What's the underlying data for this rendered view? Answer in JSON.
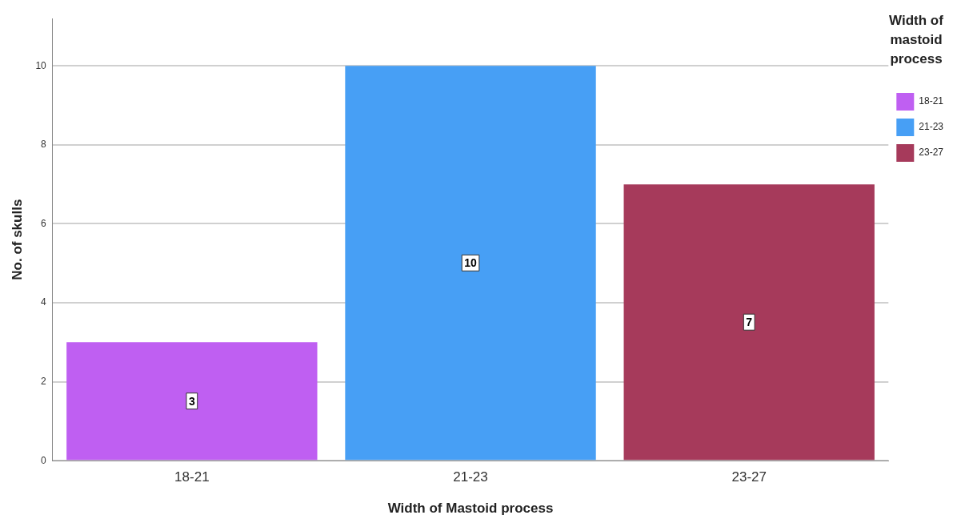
{
  "chart_data": {
    "type": "bar",
    "xlabel": "Width of Mastoid process",
    "ylabel": "No. of skulls",
    "legend_title": "Width of mastoid process",
    "categories": [
      "18-21",
      "21-23",
      "23-27"
    ],
    "series": [
      {
        "name": "18-21",
        "color": "#bf5ff2",
        "values": [
          3,
          null,
          null
        ]
      },
      {
        "name": "21-23",
        "color": "#479ff5",
        "values": [
          null,
          10,
          null
        ]
      },
      {
        "name": "23-27",
        "color": "#a63a5b",
        "values": [
          null,
          null,
          7
        ]
      }
    ],
    "ylim": [
      0,
      11.2
    ],
    "yticks": [
      0,
      2,
      4,
      6,
      8,
      10
    ],
    "grid": "y",
    "legend": "top right",
    "data_labels": true
  }
}
